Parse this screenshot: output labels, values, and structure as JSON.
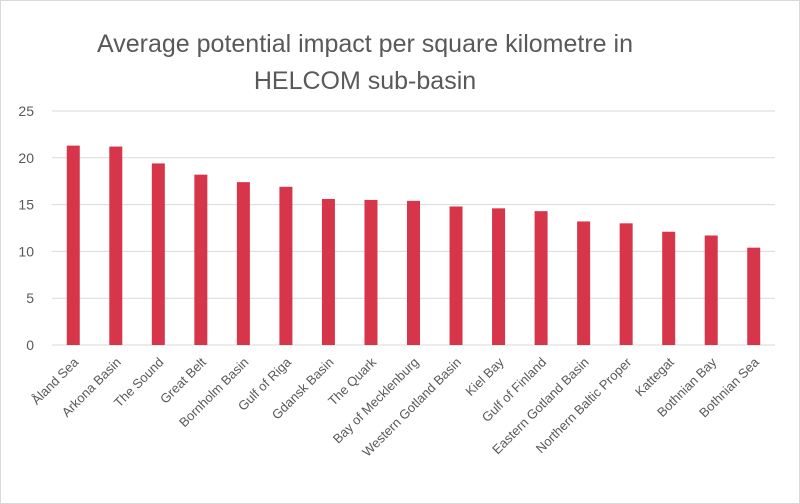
{
  "chart_data": {
    "type": "bar",
    "title_lines": [
      "Average potential impact per square kilometre in",
      "HELCOM sub-basin"
    ],
    "categories": [
      "Åland Sea",
      "Arkona Basin",
      "The Sound",
      "Great Belt",
      "Bornholm Basin",
      "Gulf of Riga",
      "Gdansk Basin",
      "The Quark",
      "Bay of Mecklenburg",
      "Western Gotland Basin",
      "Kiel Bay",
      "Gulf of Finland",
      "Eastern Gotland Basin",
      "Northern Baltic Proper",
      "Kattegat",
      "Bothnian Bay",
      "Bothnian Sea"
    ],
    "values": [
      21.3,
      21.2,
      19.4,
      18.2,
      17.4,
      16.9,
      15.6,
      15.5,
      15.4,
      14.8,
      14.6,
      14.3,
      13.2,
      13.0,
      12.1,
      11.7,
      10.4
    ],
    "yticks": [
      "0",
      "5",
      "10",
      "15",
      "20",
      "25"
    ],
    "ylim": [
      0,
      25
    ],
    "grid": true,
    "legend": "none",
    "bar_color": "#d7354a",
    "grid_color": "#d9d9d9"
  }
}
